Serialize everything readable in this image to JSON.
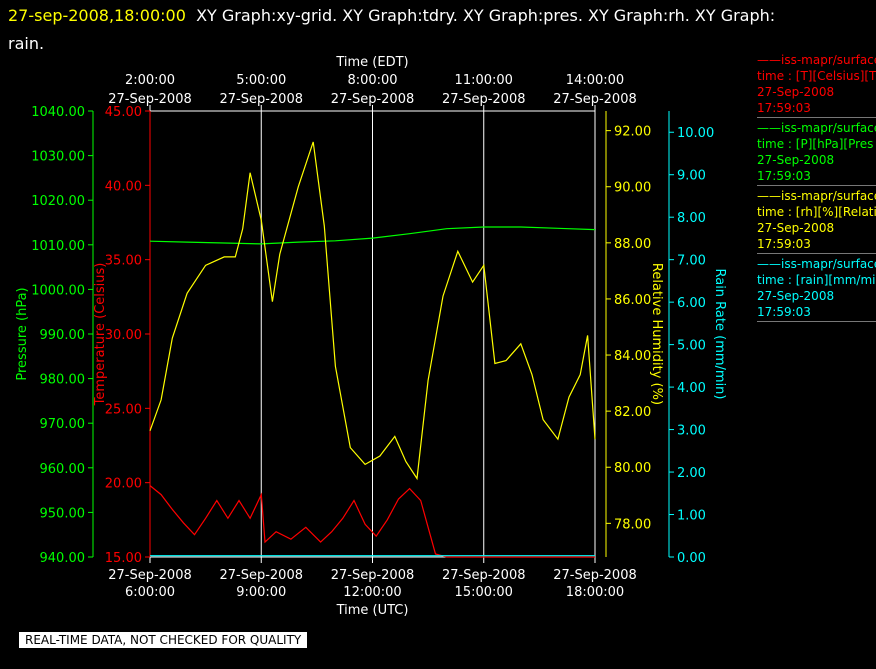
{
  "header": {
    "timestamp": "27-sep-2008,18:00:00",
    "graphs": "XY Graph:xy-grid.  XY Graph:tdry.  XY Graph:pres.  XY Graph:rh.  XY Graph:",
    "line2": "rain."
  },
  "legend": [
    {
      "line1": "iss-mapr/surface",
      "line2": "time : [T][Celsius][T",
      "date": "27-Sep-2008",
      "time": "17:59:03",
      "color": "#ff0000"
    },
    {
      "line1": "iss-mapr/surface",
      "line2": "time : [P][hPa][Pres",
      "date": "27-Sep-2008",
      "time": "17:59:03",
      "color": "#00ff00"
    },
    {
      "line1": "iss-mapr/surface",
      "line2": "time : [rh][%][Relati",
      "date": "27-Sep-2008",
      "time": "17:59:03",
      "color": "#ffff00"
    },
    {
      "line1": "iss-mapr/surface",
      "line2": "time : [rain][mm/min",
      "date": "27-Sep-2008",
      "time": "17:59:03",
      "color": "#00ffff"
    }
  ],
  "notice": "REAL-TIME DATA, NOT CHECKED FOR QUALITY",
  "chart_data": {
    "type": "line",
    "x_top_label": "Time (EDT)",
    "x_bottom_label": "Time (UTC)",
    "x_range_utc_hours": [
      6,
      18
    ],
    "top_ticks": [
      {
        "time": "2:00:00",
        "date": "27-Sep-2008",
        "utc_hour": 6
      },
      {
        "time": "5:00:00",
        "date": "27-Sep-2008",
        "utc_hour": 9
      },
      {
        "time": "8:00:00",
        "date": "27-Sep-2008",
        "utc_hour": 12
      },
      {
        "time": "11:00:00",
        "date": "27-Sep-2008",
        "utc_hour": 15
      },
      {
        "time": "14:00:00",
        "date": "27-Sep-2008",
        "utc_hour": 18
      }
    ],
    "bottom_ticks": [
      {
        "date": "27-Sep-2008",
        "time": "6:00:00",
        "utc_hour": 6
      },
      {
        "date": "27-Sep-2008",
        "time": "9:00:00",
        "utc_hour": 9
      },
      {
        "date": "27-Sep-2008",
        "time": "12:00:00",
        "utc_hour": 12
      },
      {
        "date": "27-Sep-2008",
        "time": "15:00:00",
        "utc_hour": 15
      },
      {
        "date": "27-Sep-2008",
        "time": "18:00:00",
        "utc_hour": 18
      }
    ],
    "axes": {
      "pressure": {
        "label": "Pressure (hPa)",
        "range": [
          940,
          1040
        ],
        "ticks": [
          "940.00",
          "950.00",
          "960.00",
          "970.00",
          "980.00",
          "990.00",
          "1000.00",
          "1010.00",
          "1020.00",
          "1030.00",
          "1040.00"
        ],
        "color": "#00ff00"
      },
      "temperature": {
        "label": "Temperature (Celsius)",
        "range": [
          15,
          45
        ],
        "ticks": [
          "15.00",
          "20.00",
          "25.00",
          "30.00",
          "35.00",
          "40.00",
          "45.00"
        ],
        "color": "#ff0000"
      },
      "humidity": {
        "label": "Relative Humidity (%)",
        "range": [
          76.8,
          92.7
        ],
        "ticks": [
          "78.00",
          "80.00",
          "82.00",
          "84.00",
          "86.00",
          "88.00",
          "90.00",
          "92.00"
        ],
        "color": "#ffff00"
      },
      "rain": {
        "label": "Rain Rate (mm/min)",
        "range": [
          0,
          10.5
        ],
        "ticks": [
          "0.00",
          "1.00",
          "2.00",
          "3.00",
          "4.00",
          "5.00",
          "6.00",
          "7.00",
          "8.00",
          "9.00",
          "10.00"
        ],
        "color": "#00ffff"
      }
    },
    "series": [
      {
        "name": "Pressure",
        "axis": "pressure",
        "color": "#00ff00",
        "points": [
          [
            6,
            1010.8
          ],
          [
            7,
            1010.6
          ],
          [
            8,
            1010.4
          ],
          [
            9,
            1010.2
          ],
          [
            10,
            1010.6
          ],
          [
            11,
            1010.9
          ],
          [
            12,
            1011.5
          ],
          [
            13,
            1012.5
          ],
          [
            14,
            1013.6
          ],
          [
            15,
            1014
          ],
          [
            16,
            1014
          ],
          [
            17,
            1013.7
          ],
          [
            18,
            1013.4
          ]
        ]
      },
      {
        "name": "Temperature",
        "axis": "temperature",
        "color": "#ff0000",
        "points": [
          [
            6,
            19.8
          ],
          [
            6.3,
            19.2
          ],
          [
            6.6,
            18.2
          ],
          [
            6.9,
            17.3
          ],
          [
            7.2,
            16.5
          ],
          [
            7.5,
            17.6
          ],
          [
            7.8,
            18.8
          ],
          [
            8.1,
            17.6
          ],
          [
            8.4,
            18.8
          ],
          [
            8.7,
            17.6
          ],
          [
            9,
            19.2
          ],
          [
            9.1,
            16
          ],
          [
            9.4,
            16.7
          ],
          [
            9.8,
            16.2
          ],
          [
            10.2,
            17
          ],
          [
            10.6,
            16
          ],
          [
            10.9,
            16.7
          ],
          [
            11.2,
            17.6
          ],
          [
            11.5,
            18.8
          ],
          [
            11.8,
            17.2
          ],
          [
            12.1,
            16.4
          ],
          [
            12.4,
            17.5
          ],
          [
            12.7,
            18.9
          ],
          [
            13,
            19.6
          ],
          [
            13.3,
            18.8
          ],
          [
            13.5,
            17
          ],
          [
            13.7,
            15.2
          ],
          [
            14,
            15
          ],
          [
            18,
            15
          ]
        ]
      },
      {
        "name": "Relative Humidity",
        "axis": "humidity",
        "color": "#ffff00",
        "points": [
          [
            6,
            81.3
          ],
          [
            6.3,
            82.4
          ],
          [
            6.6,
            84.6
          ],
          [
            7,
            86.2
          ],
          [
            7.5,
            87.2
          ],
          [
            8,
            87.5
          ],
          [
            8.3,
            87.5
          ],
          [
            8.5,
            88.5
          ],
          [
            8.7,
            90.5
          ],
          [
            9,
            88.8
          ],
          [
            9.3,
            85.9
          ],
          [
            9.5,
            87.6
          ],
          [
            10,
            90
          ],
          [
            10.4,
            91.6
          ],
          [
            10.7,
            88.6
          ],
          [
            11,
            83.6
          ],
          [
            11.4,
            80.7
          ],
          [
            11.8,
            80.1
          ],
          [
            12.2,
            80.4
          ],
          [
            12.6,
            81.1
          ],
          [
            12.9,
            80.2
          ],
          [
            13.2,
            79.6
          ],
          [
            13.5,
            83.1
          ],
          [
            13.9,
            86.1
          ],
          [
            14.3,
            87.7
          ],
          [
            14.7,
            86.6
          ],
          [
            15,
            87.2
          ],
          [
            15.3,
            83.7
          ],
          [
            15.6,
            83.8
          ],
          [
            16,
            84.4
          ],
          [
            16.3,
            83.3
          ],
          [
            16.6,
            81.7
          ],
          [
            17,
            81
          ],
          [
            17.3,
            82.5
          ],
          [
            17.6,
            83.3
          ],
          [
            17.8,
            84.7
          ],
          [
            18,
            81
          ]
        ]
      },
      {
        "name": "Rain Rate",
        "axis": "rain",
        "color": "#00ffff",
        "points": [
          [
            6,
            0.03
          ],
          [
            18,
            0.03
          ]
        ]
      }
    ]
  }
}
